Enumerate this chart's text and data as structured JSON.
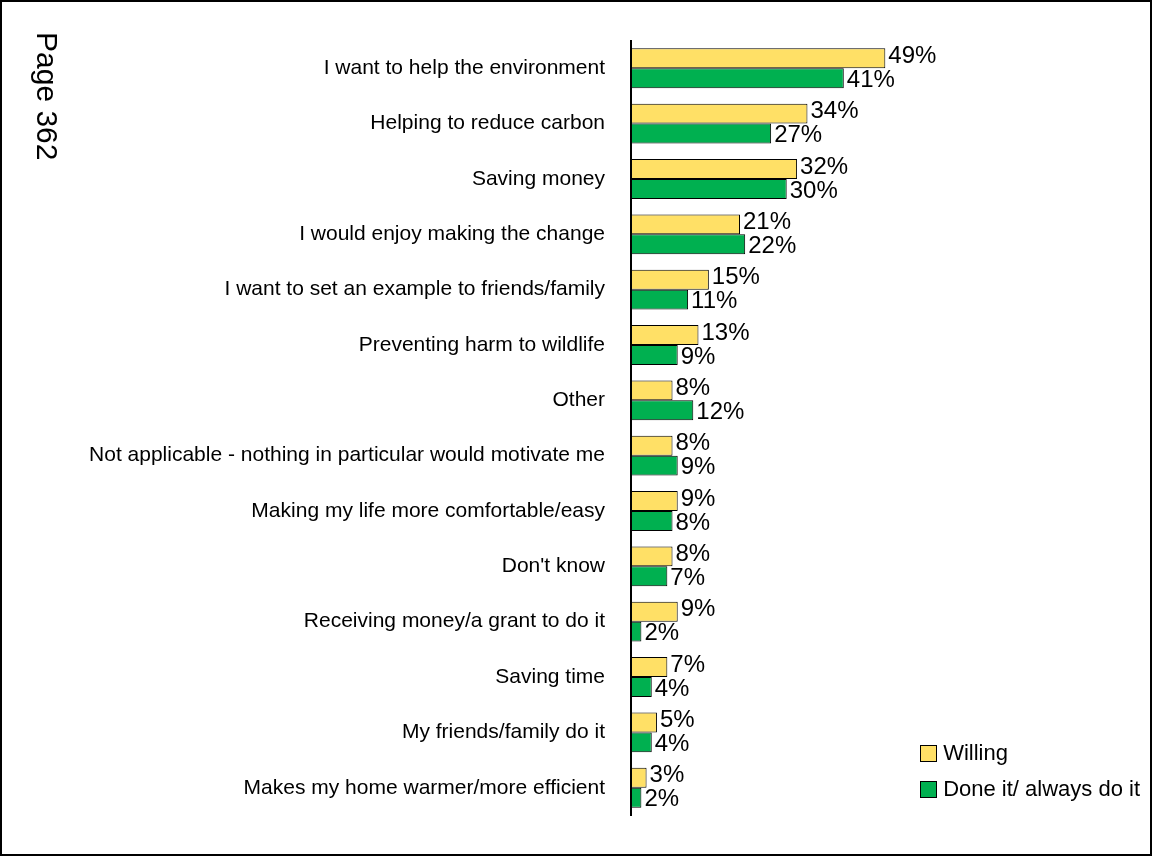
{
  "chart_data": {
    "type": "bar",
    "orientation": "horizontal",
    "categories": [
      "I want to help the environment",
      "Helping to reduce carbon",
      "Saving money",
      "I would enjoy making the change",
      "I want to set an example to friends/family",
      "Preventing harm to wildlife",
      "Other",
      "Not applicable - nothing in particular would motivate me",
      "Making my life more comfortable/easy",
      "Don't know",
      "Receiving money/a grant to do it",
      "Saving time",
      "My friends/family do it",
      "Makes my home warmer/more efficient"
    ],
    "series": [
      {
        "name": "Willing",
        "color": "#ffe066",
        "values": [
          49,
          34,
          32,
          21,
          15,
          13,
          8,
          8,
          9,
          8,
          9,
          7,
          5,
          3
        ],
        "value_labels": [
          "49%",
          "34%",
          "32%",
          "21%",
          "15%",
          "13%",
          "8%",
          "8%",
          "9%",
          "8%",
          "9%",
          "7%",
          "5%",
          "3%"
        ]
      },
      {
        "name": "Done it/ always do it",
        "color": "#00b050",
        "values": [
          41,
          27,
          30,
          22,
          11,
          9,
          12,
          9,
          8,
          7,
          2,
          4,
          4,
          2
        ],
        "value_labels": [
          "41%",
          "27%",
          "30%",
          "22%",
          "11%",
          "9%",
          "12%",
          "9%",
          "8%",
          "7%",
          "2%",
          "4%",
          "4%",
          "2%"
        ]
      }
    ],
    "xlim": [
      0,
      100
    ],
    "tick_labels": "y",
    "grid": false,
    "legend": "bottom right",
    "annotations": [
      "Page 362"
    ]
  }
}
